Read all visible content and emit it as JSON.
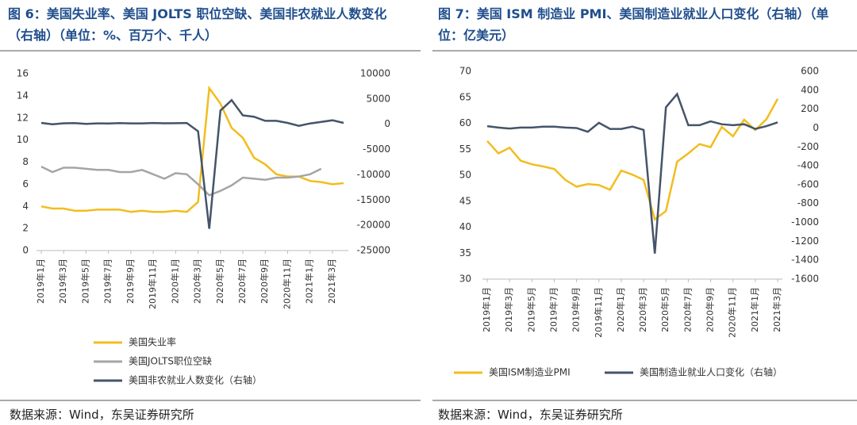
{
  "chart_data": [
    {
      "type": "line",
      "title": "图 6：美国失业率、美国 JOLTS 职位空缺、美国非农就业人数变化（右轴）（单位：%、百万个、千人）",
      "source": "数据来源：Wind，东吴证券研究所",
      "categories": [
        "2019年1月",
        null,
        "2019年3月",
        null,
        "2019年5月",
        null,
        "2019年7月",
        null,
        "2019年9月",
        null,
        "2019年11月",
        null,
        "2020年1月",
        null,
        "2020年3月",
        null,
        "2020年5月",
        null,
        "2020年7月",
        null,
        "2020年9月",
        null,
        "2020年11月",
        null,
        "2021年1月",
        null,
        "2021年3月",
        null
      ],
      "ylim": [
        0,
        16
      ],
      "yticks": [
        0,
        2,
        4,
        6,
        8,
        10,
        12,
        14,
        16
      ],
      "y2lim": [
        -25000,
        10000
      ],
      "y2ticks": [
        -25000,
        -20000,
        -15000,
        -10000,
        -5000,
        0,
        5000,
        10000
      ],
      "legend": "bottom",
      "series": [
        {
          "name": "美国失业率",
          "color": "#f2bd1d",
          "values": [
            4.0,
            3.8,
            3.8,
            3.6,
            3.6,
            3.7,
            3.7,
            3.7,
            3.5,
            3.6,
            3.5,
            3.5,
            3.6,
            3.5,
            4.4,
            14.7,
            13.3,
            11.1,
            10.2,
            8.4,
            7.8,
            6.9,
            6.7,
            6.7,
            6.3,
            6.2,
            6.0,
            6.1
          ]
        },
        {
          "name": "美国JOLTS职位空缺",
          "color": "#a5a5a5",
          "values": [
            7.6,
            7.1,
            7.5,
            7.5,
            7.4,
            7.3,
            7.3,
            7.1,
            7.1,
            7.3,
            6.9,
            6.5,
            7.0,
            6.9,
            6.0,
            5.0,
            5.4,
            5.9,
            6.6,
            6.5,
            6.4,
            6.6,
            6.6,
            6.7,
            6.9,
            7.4,
            null,
            null
          ]
        },
        {
          "name": "美国非农就业人数变化（右轴）",
          "color": "#44546a",
          "axis": "y2",
          "values": [
            269,
            1,
            189,
            216,
            62,
            178,
            166,
            219,
            180,
            180,
            261,
            184,
            214,
            251,
            -1373,
            -20679,
            2725,
            4781,
            1761,
            1493,
            672,
            680,
            264,
            -306,
            166,
            468,
            785,
            266
          ]
        }
      ]
    },
    {
      "type": "line",
      "title": "图 7：美国 ISM 制造业 PMI、美国制造业就业人口变化（右轴）（单位：亿美元）",
      "source": "数据来源：Wind，东吴证券研究所",
      "categories": [
        "2019年1月",
        null,
        "2019年3月",
        null,
        "2019年5月",
        null,
        "2019年7月",
        null,
        "2019年9月",
        null,
        "2019年11月",
        null,
        "2020年1月",
        null,
        "2020年3月",
        null,
        "2020年5月",
        null,
        "2020年7月",
        null,
        "2020年9月",
        null,
        "2020年11月",
        null,
        "2021年1月",
        null,
        "2021年3月"
      ],
      "ylim": [
        30,
        70
      ],
      "yticks": [
        30,
        35,
        40,
        45,
        50,
        55,
        60,
        65,
        70
      ],
      "y2lim": [
        -1600,
        600
      ],
      "y2ticks": [
        -1600,
        -1400,
        -1200,
        -1000,
        -800,
        -600,
        -400,
        -200,
        0,
        200,
        400,
        600
      ],
      "legend": "bottom",
      "series": [
        {
          "name": "美国ISM制造业PMI",
          "color": "#f2bd1d",
          "values": [
            56.6,
            54.2,
            55.3,
            52.8,
            52.1,
            51.7,
            51.2,
            49.1,
            47.8,
            48.3,
            48.1,
            47.2,
            50.9,
            50.1,
            49.1,
            41.5,
            43.1,
            52.6,
            54.2,
            56.0,
            55.4,
            59.3,
            57.5,
            60.7,
            58.7,
            60.8,
            64.7
          ]
        },
        {
          "name": "美国制造业就业人口变化（右轴）",
          "color": "#44546a",
          "axis": "y2",
          "values": [
            20,
            5,
            -5,
            5,
            5,
            15,
            15,
            5,
            0,
            -40,
            55,
            -10,
            -10,
            15,
            -20,
            -1330,
            220,
            360,
            30,
            30,
            70,
            40,
            30,
            40,
            -10,
            20,
            60
          ]
        }
      ]
    }
  ]
}
